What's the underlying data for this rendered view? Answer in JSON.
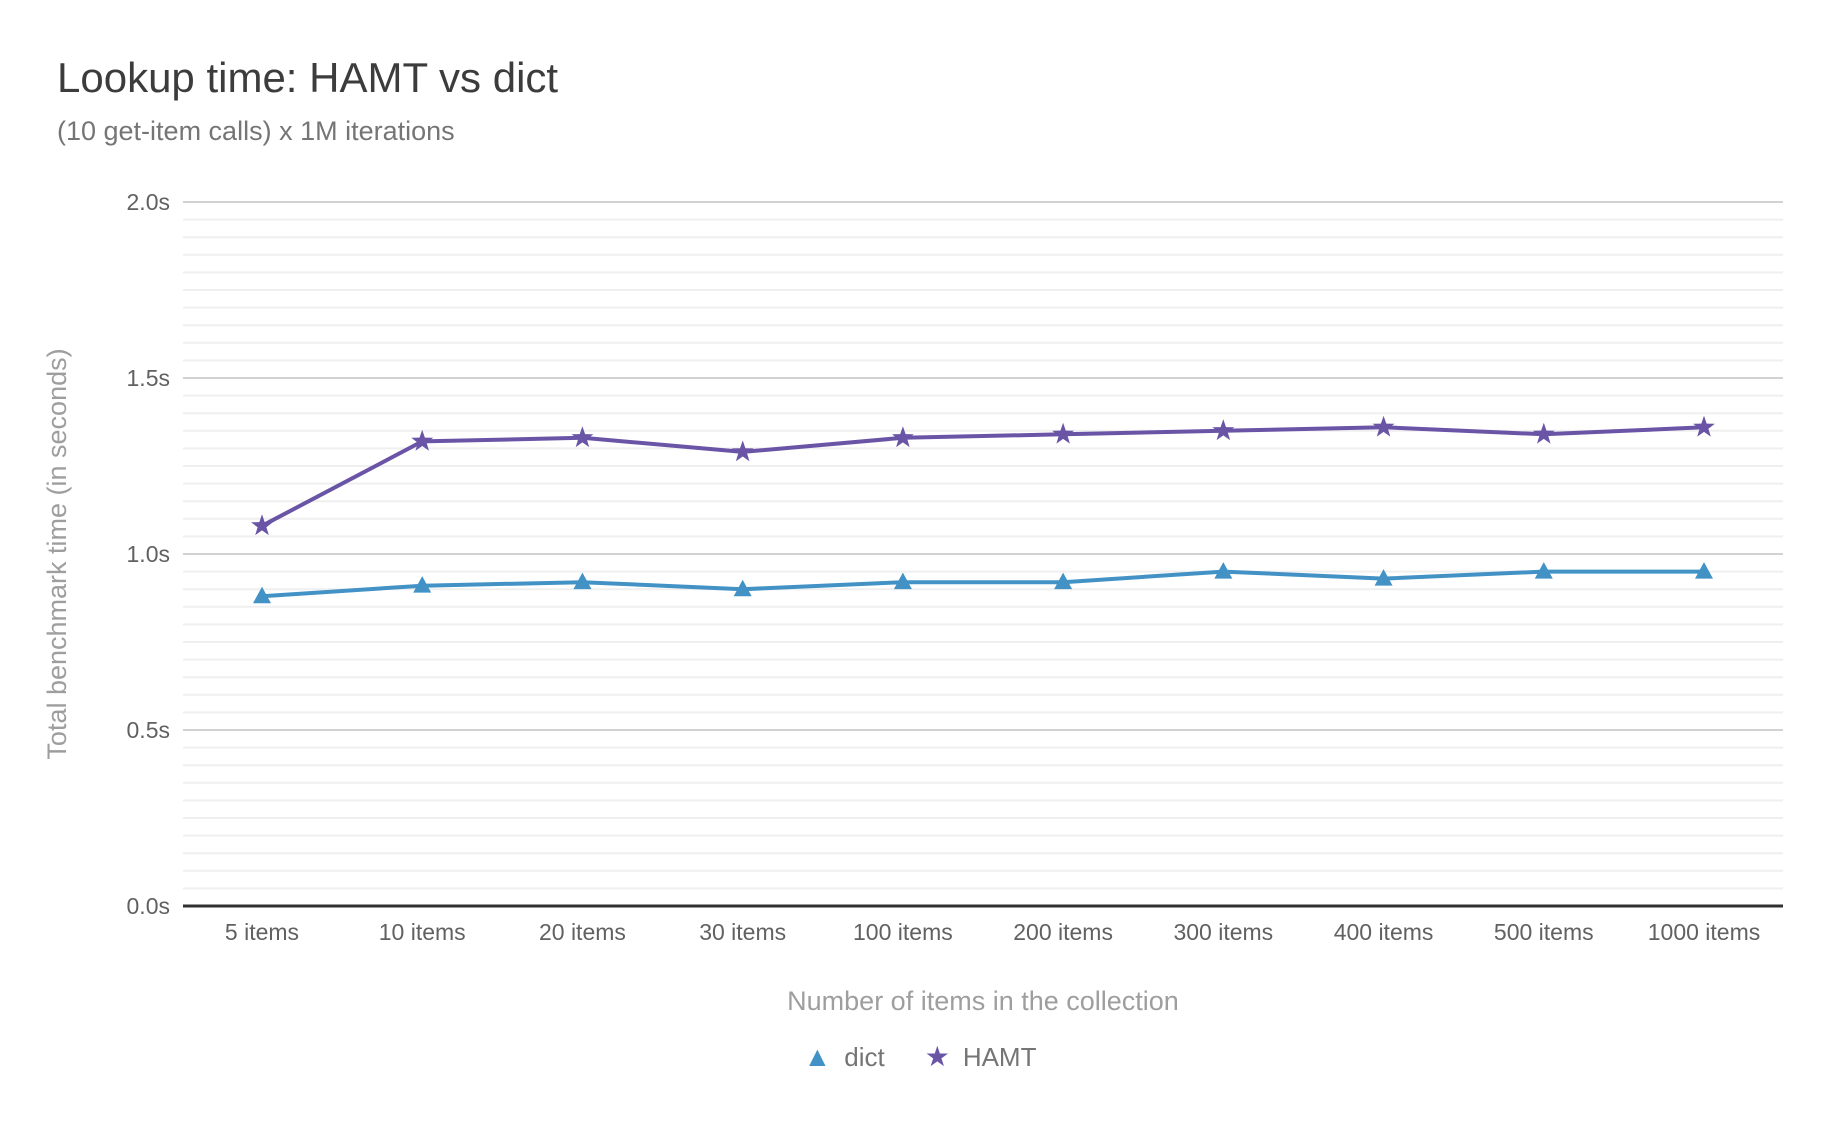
{
  "chart_data": {
    "type": "line",
    "title": "Lookup time: HAMT vs dict",
    "subtitle": "(10 get-item calls) x 1M iterations",
    "xlabel": "Number of items in the collection",
    "ylabel": "Total benchmark time (in seconds)",
    "categories": [
      "5 items",
      "10 items",
      "20 items",
      "30 items",
      "100 items",
      "200 items",
      "300 items",
      "400 items",
      "500 items",
      "1000 items"
    ],
    "series": [
      {
        "name": "dict",
        "marker": "triangle",
        "color": "#4292c6",
        "values": [
          0.88,
          0.91,
          0.92,
          0.9,
          0.92,
          0.92,
          0.95,
          0.93,
          0.95,
          0.95
        ]
      },
      {
        "name": "HAMT",
        "marker": "star",
        "color": "#6a54a6",
        "values": [
          1.08,
          1.32,
          1.33,
          1.29,
          1.33,
          1.34,
          1.35,
          1.36,
          1.34,
          1.36
        ]
      }
    ],
    "ylim": [
      0,
      2.0
    ],
    "y_ticks": [
      {
        "value": 0.0,
        "label": "0.0s"
      },
      {
        "value": 0.5,
        "label": "0.5s"
      },
      {
        "value": 1.0,
        "label": "1.0s"
      },
      {
        "value": 1.5,
        "label": "1.5s"
      },
      {
        "value": 2.0,
        "label": "2.0s"
      }
    ],
    "minor_grid_step": 0.05,
    "grid": true,
    "legend_position": "bottom"
  },
  "colors": {
    "title_text": "#3c3c3c",
    "subtitle_text": "#757575",
    "tick_label": "#616161",
    "axis_title": "#9e9e9e",
    "legend_text": "#757575",
    "axis_line": "#303030",
    "major_grid": "#d2d2d2",
    "minor_grid": "#efefef",
    "background": "#ffffff"
  }
}
